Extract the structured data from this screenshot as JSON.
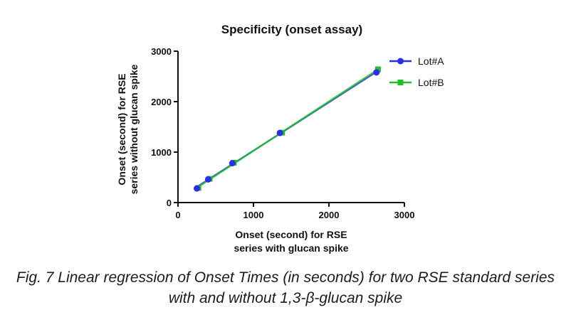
{
  "chart_data": {
    "type": "scatter",
    "title": "Specificity (onset assay)",
    "xlabel_lines": [
      "Onset (second) for RSE",
      "series with glucan spike"
    ],
    "ylabel_lines": [
      "Onset (second) for RSE",
      "series without glucan spike"
    ],
    "xlim": [
      0,
      3000
    ],
    "ylim": [
      0,
      3000
    ],
    "x_ticks": [
      0,
      1000,
      2000,
      3000
    ],
    "y_ticks": [
      0,
      1000,
      2000,
      3000
    ],
    "grid": false,
    "legend_position": "top-right",
    "fit_line": "linear regression per series",
    "series": [
      {
        "name": "Lot#A",
        "color": "#2b2ee8",
        "marker": "circle",
        "x": [
          250,
          400,
          720,
          1350,
          2630
        ],
        "y": [
          280,
          460,
          780,
          1380,
          2580
        ]
      },
      {
        "name": "Lot#B",
        "color": "#1fbf2a",
        "marker": "square",
        "x": [
          270,
          420,
          740,
          1380,
          2650
        ],
        "y": [
          290,
          470,
          790,
          1385,
          2640
        ]
      }
    ]
  },
  "caption": {
    "line1": "Fig. 7 Linear regression of Onset Times (in seconds) for two RSE standard series",
    "line2": "with and without 1,3-β-glucan spike"
  }
}
